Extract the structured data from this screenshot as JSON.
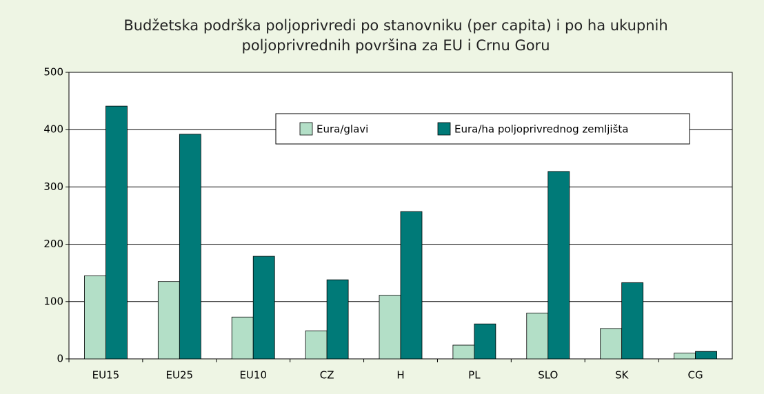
{
  "chart_data": {
    "type": "bar",
    "title": [
      "Budžetska podrška poljoprivredi po stanovniku (per capita) i po ha ukupnih",
      "poljoprivrednih površina za EU i Crnu Goru"
    ],
    "categories": [
      "EU15",
      "EU25",
      "EU10",
      "CZ",
      "H",
      "PL",
      "SLO",
      "SK",
      "CG"
    ],
    "series": [
      {
        "name": "Eura/glavi",
        "color": "#b3dfc7",
        "values": [
          145,
          135,
          73,
          49,
          111,
          24,
          80,
          53,
          10
        ]
      },
      {
        "name": "Eura/ha poljoprivrednog zemljišta",
        "color": "#007a78",
        "values": [
          441,
          392,
          179,
          138,
          257,
          61,
          327,
          133,
          13
        ]
      }
    ],
    "ylim": [
      0,
      500
    ],
    "yticks": [
      0,
      100,
      200,
      300,
      400,
      500
    ],
    "grid": true
  }
}
